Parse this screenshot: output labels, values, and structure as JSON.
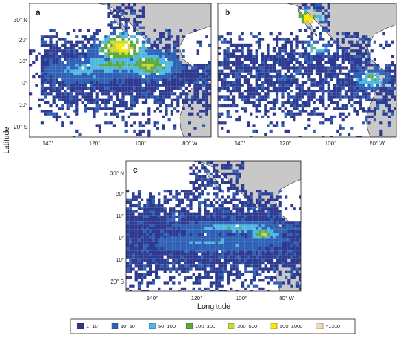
{
  "panels": [
    {
      "letter": "a",
      "lat_ticks": [
        "30° N",
        "20°",
        "10°",
        "0°",
        "10°",
        "20° S"
      ],
      "lon_ticks": [
        "140°",
        "120°",
        "100°",
        "80° W"
      ]
    },
    {
      "letter": "b",
      "lat_ticks": [
        "30° N",
        "20°",
        "10°",
        "0°",
        "10°",
        "20° S"
      ],
      "lon_ticks": [
        "140°",
        "120°",
        "100°",
        "80° W"
      ]
    },
    {
      "letter": "c",
      "lat_ticks": [
        "30° N",
        "20°",
        "10°",
        "0°",
        "10°",
        "20° S"
      ],
      "lon_ticks": [
        "140°",
        "120°",
        "100°",
        "80° W"
      ]
    }
  ],
  "axis": {
    "ylabel": "Latitude",
    "xlabel": "Longitude"
  },
  "legend": {
    "items": [
      {
        "label": "1–10",
        "color": "#2e3a8f"
      },
      {
        "label": "10–50",
        "color": "#2f62b6"
      },
      {
        "label": "50–100",
        "color": "#4fb9e3"
      },
      {
        "label": "100–300",
        "color": "#5fa83c"
      },
      {
        "label": "300–500",
        "color": "#c7d93b"
      },
      {
        "label": "500–1000",
        "color": "#ffe800"
      },
      {
        "label": ">1000",
        "color": "#f7d9b1"
      }
    ]
  },
  "colors": {
    "land": "#c8c8c8",
    "ocean": "#ffffff",
    "frame": "#231f20"
  }
}
